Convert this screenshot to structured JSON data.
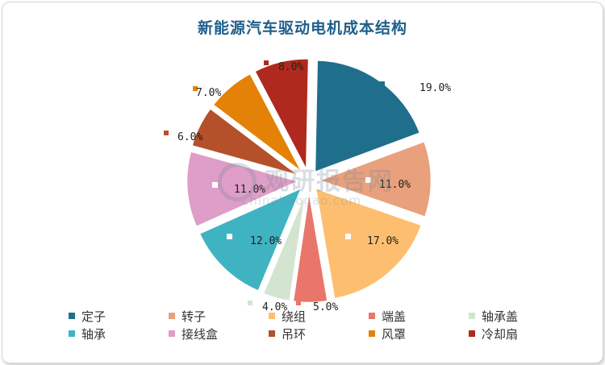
{
  "chart_data": {
    "type": "pie",
    "title": "新能源汽车驱动电机成本结构",
    "categories": [
      "定子",
      "转子",
      "绕组",
      "端盖",
      "轴承盖",
      "轴承",
      "接线盒",
      "吊环",
      "风罩",
      "冷却扇"
    ],
    "values": [
      19.0,
      11.0,
      17.0,
      5.0,
      4.0,
      12.0,
      11.0,
      6.0,
      7.0,
      8.0
    ],
    "data_labels": [
      "19.0%",
      "11.0%",
      "17.0%",
      "5.0%",
      "4.0%",
      "12.0%",
      "11.0%",
      "6.0%",
      "7.0%",
      "8.0%"
    ],
    "colors": [
      "#1f6e8c",
      "#e9a07c",
      "#fdbf6f",
      "#e8766a",
      "#d3e5d0",
      "#3fb3c2",
      "#de9ec7",
      "#b4512a",
      "#e38206",
      "#b0291e"
    ],
    "legend_position": "bottom",
    "exploded": true
  },
  "watermark": {
    "text": "观研报告网",
    "url": "chinabaogao.com"
  }
}
